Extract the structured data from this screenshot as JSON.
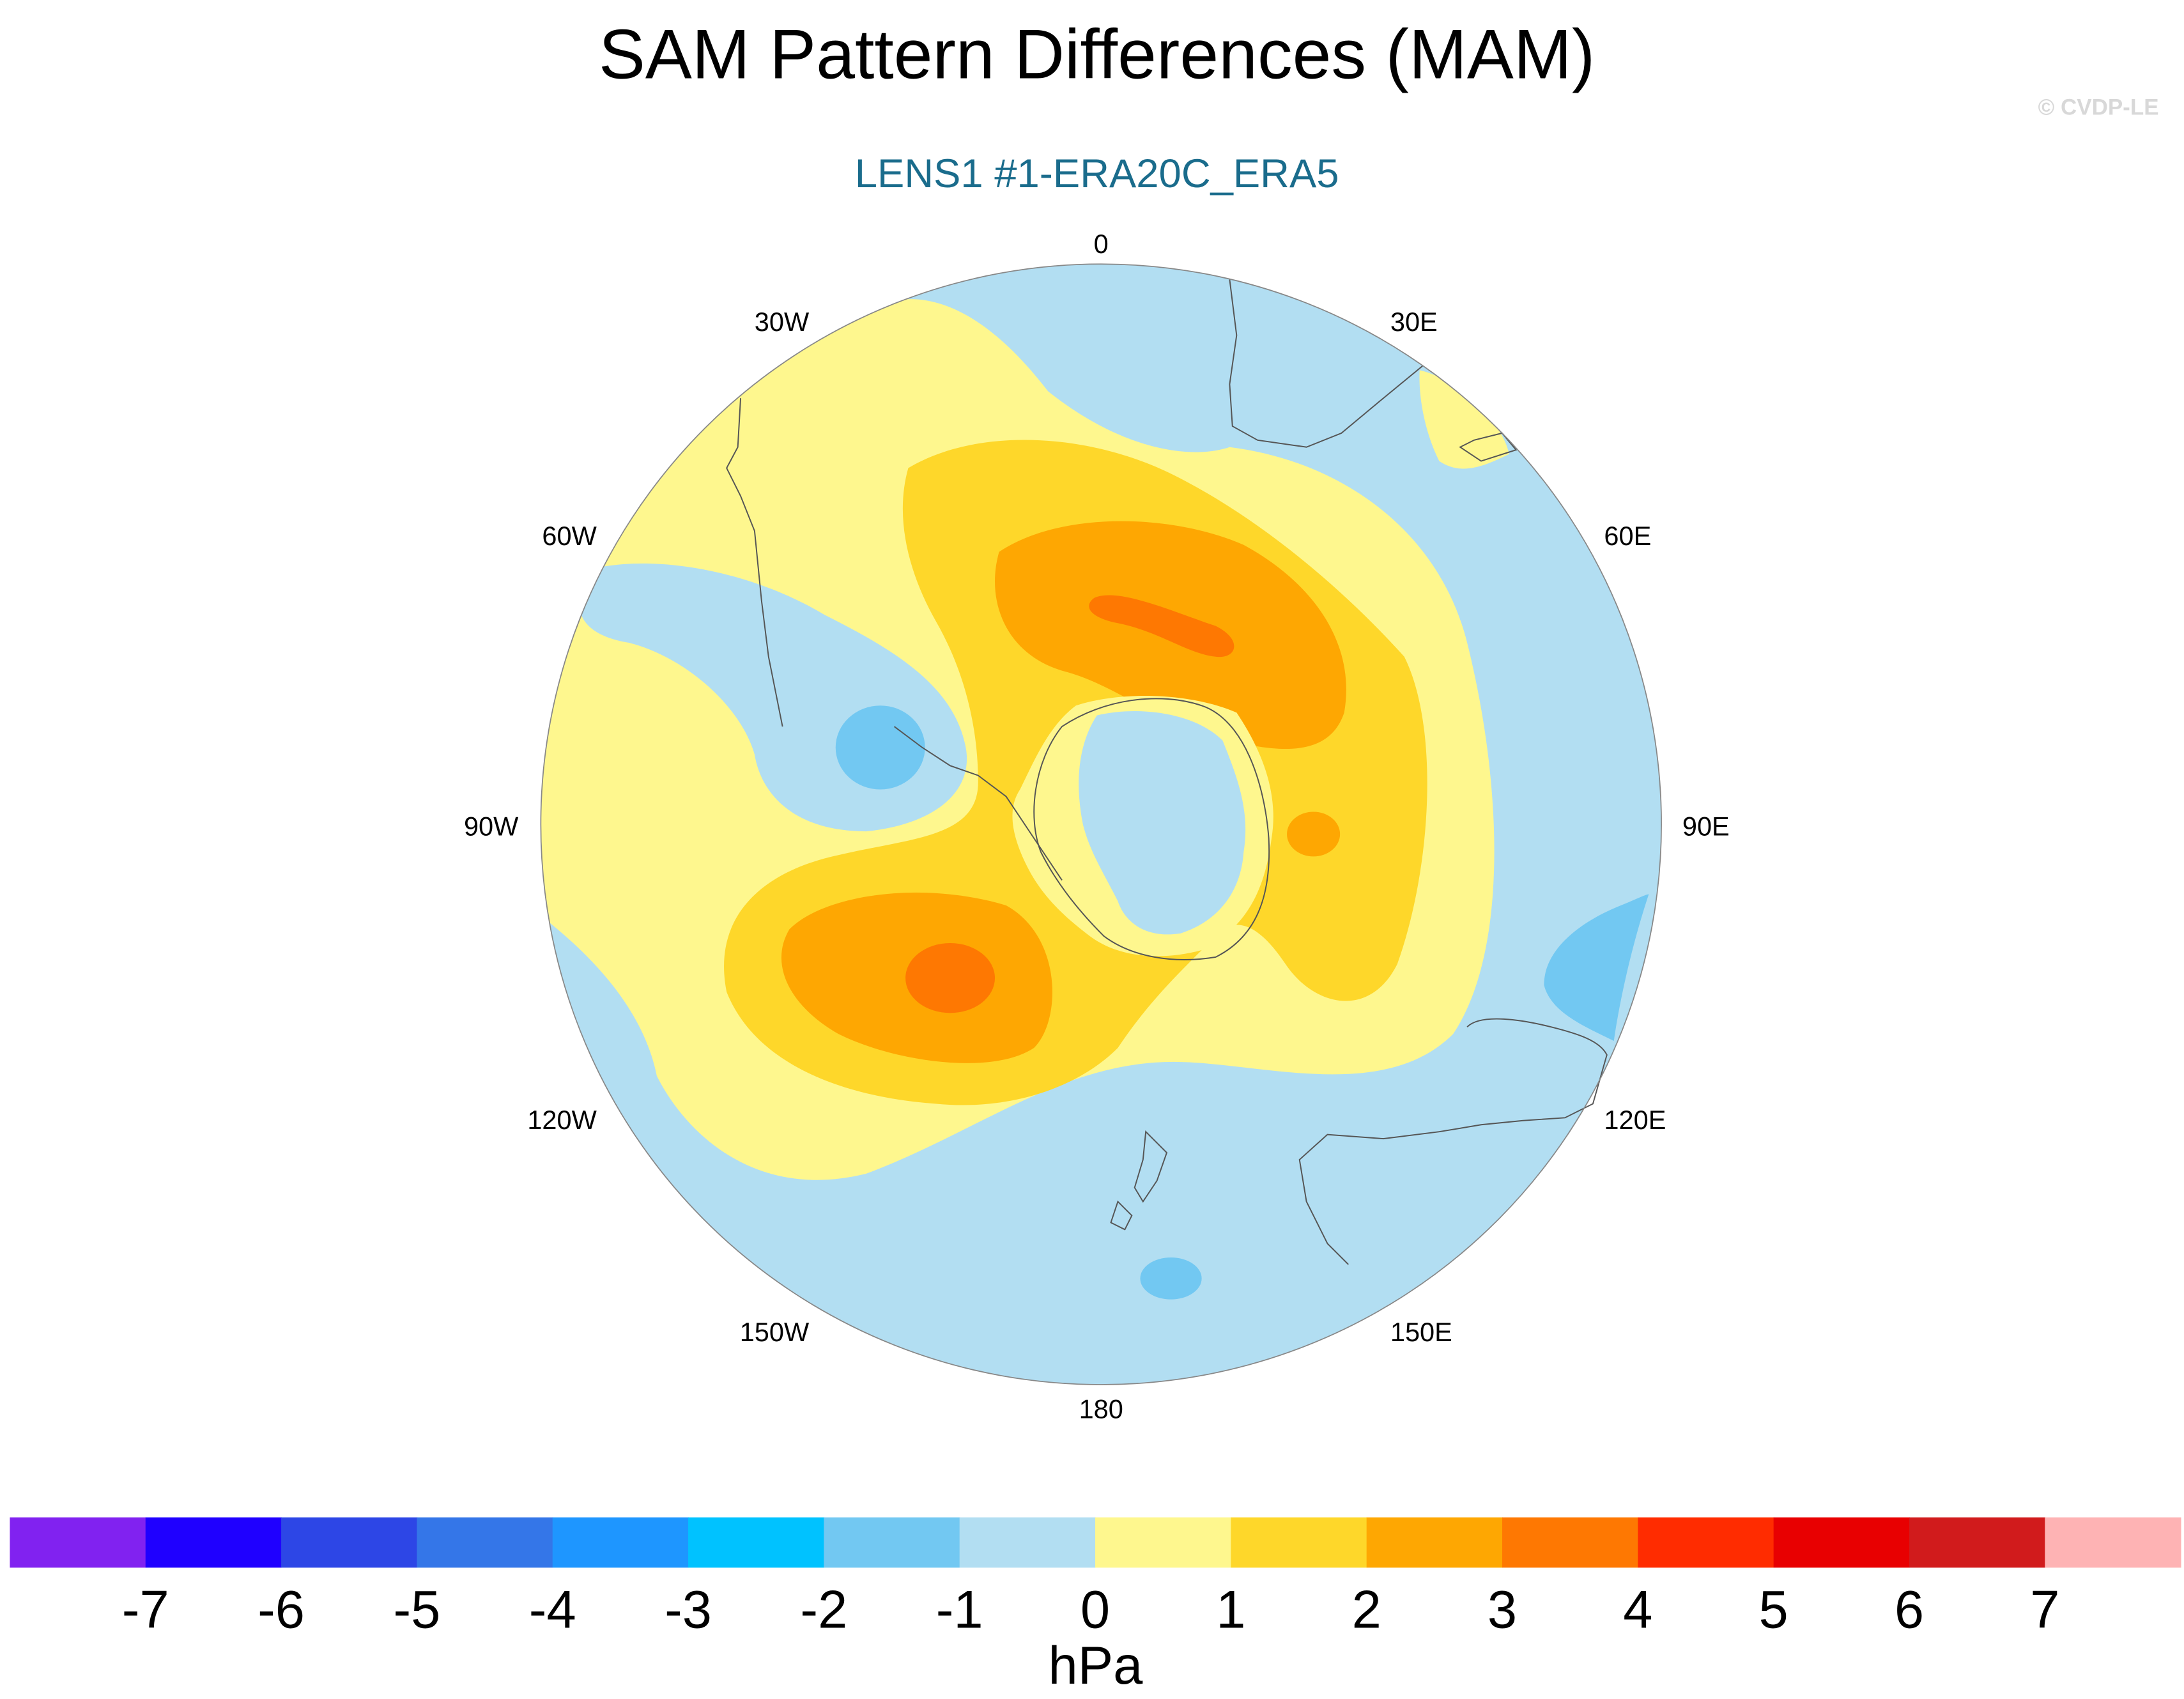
{
  "title": "SAM Pattern Differences (MAM)",
  "subtitle": "LENS1 #1-ERA20C_ERA5",
  "copyright": "© CVDP-LE",
  "longitude_labels": [
    "0",
    "30E",
    "60E",
    "90E",
    "120E",
    "150E",
    "180",
    "150W",
    "120W",
    "90W",
    "60W",
    "30W"
  ],
  "colorbar": {
    "unit": "hPa",
    "ticks": [
      "-7",
      "-6",
      "-5",
      "-4",
      "-3",
      "-2",
      "-1",
      "0",
      "1",
      "2",
      "3",
      "4",
      "5",
      "6",
      "7"
    ],
    "colors": [
      "#8122f0",
      "#1f00ff",
      "#2d46e6",
      "#3476e8",
      "#1e96ff",
      "#00c2ff",
      "#72c8f2",
      "#b2def2",
      "#fef78e",
      "#fed72a",
      "#fea702",
      "#fe7802",
      "#ff2c00",
      "#e80001",
      "#d11b1c",
      "#feb3b4"
    ]
  },
  "colors": {
    "title": "#000000",
    "subtitle": "#1a6c8c",
    "copyright": "#d8d8d8",
    "coastline": "#555555"
  },
  "icons": {
    "map": "south-polar-stereographic-map"
  }
}
